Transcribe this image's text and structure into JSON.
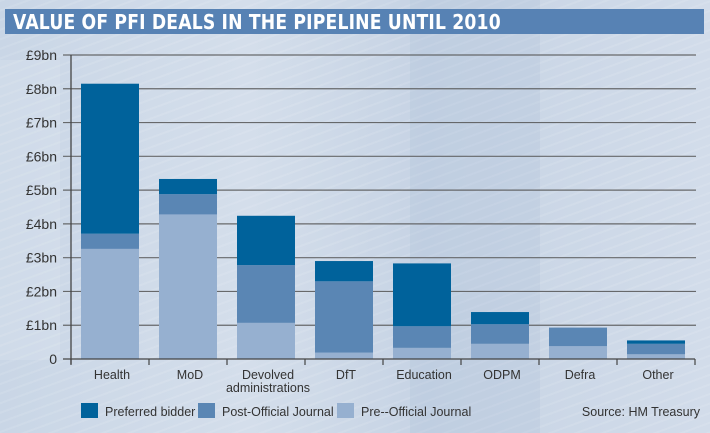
{
  "title": "VALUE OF PFI DEALS IN THE PIPELINE UNTIL 2010",
  "source": "Source: HM Treasury",
  "colors": {
    "title_bar": "#5782b4",
    "preferred_bidder": "#00629b",
    "post_official_journal": "#5a86b4",
    "pre_official_journal": "#96b0d0",
    "gridline": "#555555"
  },
  "chart_data": {
    "type": "bar",
    "stacked": true,
    "title": "VALUE OF PFI DEALS IN THE PIPELINE UNTIL 2010",
    "xlabel": "",
    "ylabel": "",
    "ylim": [
      0,
      9
    ],
    "grid": true,
    "legend_position": "bottom-left",
    "yticks": [
      0,
      1,
      2,
      3,
      4,
      5,
      6,
      7,
      8,
      9
    ],
    "ytick_labels": [
      "0",
      "£1bn",
      "£2bn",
      "£3bn",
      "£4bn",
      "£5bn",
      "£6bn",
      "£7bn",
      "£8bn",
      "£9bn"
    ],
    "categories": [
      [
        "Health"
      ],
      [
        "MoD"
      ],
      [
        "Devolved",
        "administrations"
      ],
      [
        "DfT"
      ],
      [
        "Education"
      ],
      [
        "ODPM"
      ],
      [
        "Defra"
      ],
      [
        "Other"
      ]
    ],
    "category_names": [
      "Health",
      "MoD",
      "Devolved administrations",
      "DfT",
      "Education",
      "ODPM",
      "Defra",
      "Other"
    ],
    "series": [
      {
        "name": "Pre--Official Journal",
        "color": "#96b0d0",
        "values": [
          3.26,
          4.28,
          1.07,
          0.19,
          0.33,
          0.45,
          0.38,
          0.14
        ]
      },
      {
        "name": "Post-Official Journal",
        "color": "#5a86b4",
        "values": [
          0.45,
          0.6,
          1.71,
          2.11,
          0.64,
          0.58,
          0.55,
          0.31
        ]
      },
      {
        "name": "Preferred bidder",
        "color": "#00629b",
        "values": [
          4.44,
          0.45,
          1.46,
          0.6,
          1.86,
          0.36,
          0.0,
          0.1
        ]
      }
    ],
    "legend": [
      "Preferred bidder",
      "Post-Official Journal",
      "Pre--Official Journal"
    ],
    "annotations": [
      "Source: HM Treasury"
    ]
  }
}
